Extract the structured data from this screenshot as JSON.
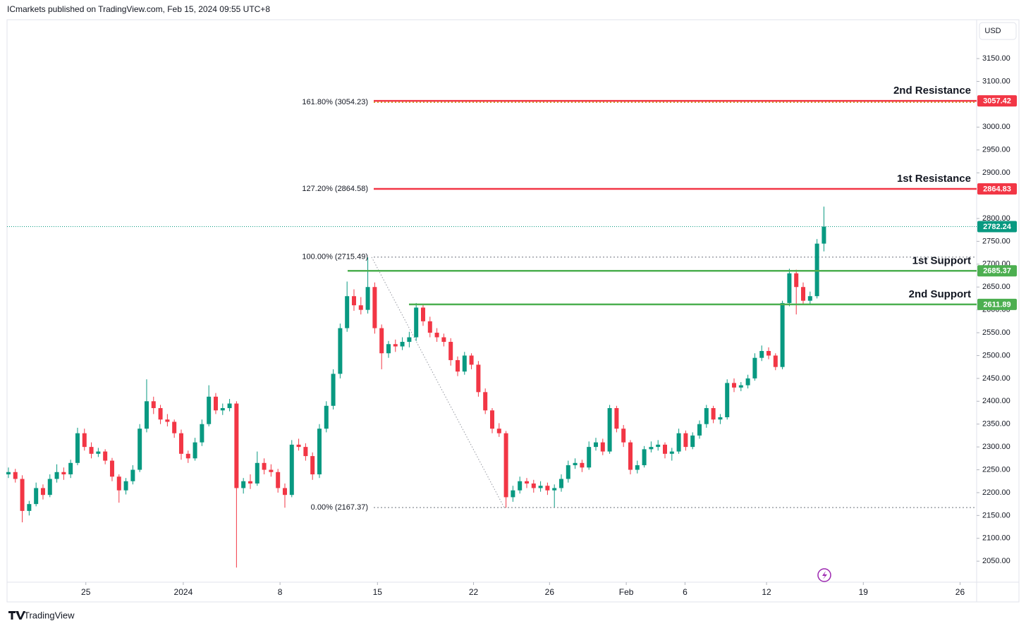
{
  "header": {
    "publisher": "ICmarkets published on TradingView.com, Feb 15, 2024 09:55 UTC+8",
    "currency": "USD"
  },
  "footer": {
    "brand": "TradingView"
  },
  "chart_data": {
    "type": "candlestick",
    "up_color": "#089981",
    "down_color": "#f23645",
    "xlim": [
      -0.2,
      140.1
    ],
    "xticks": [
      {
        "value": 11.2,
        "label": "25"
      },
      {
        "value": 25.3,
        "label": "2024"
      },
      {
        "value": 39.3,
        "label": "8"
      },
      {
        "value": 53.4,
        "label": "15"
      },
      {
        "value": 67.3,
        "label": "22"
      },
      {
        "value": 78.3,
        "label": "26"
      },
      {
        "value": 89.4,
        "label": "Feb"
      },
      {
        "value": 97.9,
        "label": "6"
      },
      {
        "value": 109.7,
        "label": "12"
      },
      {
        "value": 123.7,
        "label": "19"
      },
      {
        "value": 137.7,
        "label": "26"
      }
    ],
    "ylim": [
      2004,
      3235
    ],
    "yticks": [
      {
        "value": 2050,
        "label": "2050.00"
      },
      {
        "value": 2100,
        "label": "2100.00"
      },
      {
        "value": 2150,
        "label": "2150.00"
      },
      {
        "value": 2200,
        "label": "2200.00"
      },
      {
        "value": 2250,
        "label": "2250.00"
      },
      {
        "value": 2300,
        "label": "2300.00"
      },
      {
        "value": 2350,
        "label": "2350.00"
      },
      {
        "value": 2400,
        "label": "2400.00"
      },
      {
        "value": 2450,
        "label": "2450.00"
      },
      {
        "value": 2500,
        "label": "2500.00"
      },
      {
        "value": 2550,
        "label": "2550.00"
      },
      {
        "value": 2600,
        "label": "2600.00"
      },
      {
        "value": 2650,
        "label": "2650.00"
      },
      {
        "value": 2700,
        "label": "2700.00"
      },
      {
        "value": 2750,
        "label": "2750.00"
      },
      {
        "value": 2800,
        "label": "2800.00"
      },
      {
        "value": 2900,
        "label": "2900.00"
      },
      {
        "value": 2950,
        "label": "2950.00"
      },
      {
        "value": 3000,
        "label": "3000.00"
      },
      {
        "value": 3100,
        "label": "3100.00"
      },
      {
        "value": 3150,
        "label": "3150.00"
      }
    ],
    "candles": [
      [
        2240,
        2255,
        2232,
        2245
      ],
      [
        2245,
        2252,
        2222,
        2230
      ],
      [
        2230,
        2238,
        2135,
        2160
      ],
      [
        2160,
        2182,
        2150,
        2175
      ],
      [
        2175,
        2222,
        2170,
        2210
      ],
      [
        2210,
        2218,
        2185,
        2195
      ],
      [
        2195,
        2240,
        2190,
        2230
      ],
      [
        2230,
        2262,
        2222,
        2245
      ],
      [
        2245,
        2255,
        2228,
        2240
      ],
      [
        2240,
        2272,
        2232,
        2265
      ],
      [
        2265,
        2342,
        2260,
        2330
      ],
      [
        2330,
        2340,
        2292,
        2300
      ],
      [
        2300,
        2310,
        2275,
        2285
      ],
      [
        2285,
        2298,
        2278,
        2290
      ],
      [
        2290,
        2295,
        2262,
        2270
      ],
      [
        2270,
        2276,
        2225,
        2235
      ],
      [
        2235,
        2240,
        2178,
        2205
      ],
      [
        2205,
        2232,
        2196,
        2225
      ],
      [
        2225,
        2260,
        2218,
        2250
      ],
      [
        2250,
        2350,
        2245,
        2340
      ],
      [
        2340,
        2448,
        2332,
        2400
      ],
      [
        2400,
        2410,
        2372,
        2385
      ],
      [
        2385,
        2392,
        2350,
        2360
      ],
      [
        2360,
        2372,
        2345,
        2355
      ],
      [
        2355,
        2360,
        2320,
        2330
      ],
      [
        2330,
        2338,
        2272,
        2285
      ],
      [
        2285,
        2292,
        2265,
        2275
      ],
      [
        2275,
        2320,
        2270,
        2310
      ],
      [
        2310,
        2360,
        2302,
        2350
      ],
      [
        2350,
        2435,
        2345,
        2410
      ],
      [
        2410,
        2418,
        2372,
        2380
      ],
      [
        2380,
        2395,
        2370,
        2385
      ],
      [
        2385,
        2405,
        2378,
        2395
      ],
      [
        2395,
        2400,
        2036,
        2210
      ],
      [
        2210,
        2232,
        2198,
        2225
      ],
      [
        2225,
        2240,
        2208,
        2220
      ],
      [
        2220,
        2290,
        2215,
        2265
      ],
      [
        2265,
        2275,
        2240,
        2250
      ],
      [
        2250,
        2262,
        2235,
        2245
      ],
      [
        2245,
        2252,
        2200,
        2210
      ],
      [
        2210,
        2220,
        2167,
        2195
      ],
      [
        2195,
        2315,
        2190,
        2305
      ],
      [
        2305,
        2318,
        2292,
        2300
      ],
      [
        2300,
        2308,
        2270,
        2280
      ],
      [
        2280,
        2288,
        2228,
        2240
      ],
      [
        2240,
        2350,
        2232,
        2340
      ],
      [
        2340,
        2400,
        2332,
        2390
      ],
      [
        2390,
        2470,
        2382,
        2460
      ],
      [
        2460,
        2570,
        2450,
        2560
      ],
      [
        2560,
        2662,
        2552,
        2630
      ],
      [
        2630,
        2645,
        2598,
        2610
      ],
      [
        2610,
        2628,
        2590,
        2600
      ],
      [
        2600,
        2715,
        2592,
        2650
      ],
      [
        2650,
        2660,
        2548,
        2560
      ],
      [
        2560,
        2568,
        2470,
        2505
      ],
      [
        2505,
        2532,
        2495,
        2525
      ],
      [
        2525,
        2535,
        2508,
        2520
      ],
      [
        2520,
        2540,
        2512,
        2530
      ],
      [
        2530,
        2552,
        2518,
        2540
      ],
      [
        2540,
        2615,
        2532,
        2605
      ],
      [
        2605,
        2612,
        2565,
        2575
      ],
      [
        2575,
        2585,
        2540,
        2550
      ],
      [
        2550,
        2560,
        2530,
        2540
      ],
      [
        2540,
        2548,
        2520,
        2530
      ],
      [
        2530,
        2538,
        2478,
        2490
      ],
      [
        2490,
        2498,
        2455,
        2465
      ],
      [
        2465,
        2508,
        2458,
        2500
      ],
      [
        2500,
        2505,
        2470,
        2480
      ],
      [
        2480,
        2488,
        2410,
        2420
      ],
      [
        2420,
        2428,
        2372,
        2380
      ],
      [
        2380,
        2385,
        2330,
        2340
      ],
      [
        2340,
        2352,
        2322,
        2330
      ],
      [
        2330,
        2335,
        2167,
        2190
      ],
      [
        2190,
        2215,
        2180,
        2205
      ],
      [
        2205,
        2235,
        2198,
        2225
      ],
      [
        2225,
        2232,
        2210,
        2220
      ],
      [
        2220,
        2228,
        2200,
        2210
      ],
      [
        2210,
        2225,
        2202,
        2215
      ],
      [
        2215,
        2222,
        2195,
        2205
      ],
      [
        2205,
        2218,
        2168,
        2210
      ],
      [
        2210,
        2240,
        2202,
        2230
      ],
      [
        2230,
        2270,
        2222,
        2260
      ],
      [
        2260,
        2275,
        2252,
        2265
      ],
      [
        2265,
        2272,
        2245,
        2255
      ],
      [
        2255,
        2312,
        2250,
        2300
      ],
      [
        2300,
        2320,
        2292,
        2310
      ],
      [
        2310,
        2318,
        2282,
        2290
      ],
      [
        2290,
        2392,
        2285,
        2385
      ],
      [
        2385,
        2390,
        2332,
        2340
      ],
      [
        2340,
        2348,
        2300,
        2310
      ],
      [
        2310,
        2315,
        2240,
        2250
      ],
      [
        2250,
        2270,
        2242,
        2260
      ],
      [
        2260,
        2302,
        2255,
        2295
      ],
      [
        2295,
        2312,
        2288,
        2300
      ],
      [
        2300,
        2315,
        2292,
        2305
      ],
      [
        2305,
        2310,
        2275,
        2285
      ],
      [
        2285,
        2298,
        2270,
        2290
      ],
      [
        2290,
        2340,
        2285,
        2330
      ],
      [
        2330,
        2336,
        2292,
        2300
      ],
      [
        2300,
        2332,
        2295,
        2325
      ],
      [
        2325,
        2358,
        2318,
        2350
      ],
      [
        2350,
        2392,
        2342,
        2385
      ],
      [
        2385,
        2390,
        2352,
        2360
      ],
      [
        2360,
        2372,
        2350,
        2365
      ],
      [
        2365,
        2448,
        2360,
        2440
      ],
      [
        2440,
        2450,
        2420,
        2430
      ],
      [
        2430,
        2442,
        2422,
        2435
      ],
      [
        2435,
        2458,
        2428,
        2450
      ],
      [
        2450,
        2505,
        2445,
        2495
      ],
      [
        2495,
        2522,
        2488,
        2510
      ],
      [
        2510,
        2518,
        2492,
        2500
      ],
      [
        2500,
        2505,
        2468,
        2475
      ],
      [
        2475,
        2620,
        2470,
        2615
      ],
      [
        2615,
        2690,
        2608,
        2680
      ],
      [
        2680,
        2688,
        2590,
        2650
      ],
      [
        2650,
        2660,
        2612,
        2620
      ],
      [
        2620,
        2640,
        2612,
        2630
      ],
      [
        2630,
        2755,
        2625,
        2745
      ],
      [
        2745,
        2826,
        2728,
        2782.24
      ]
    ],
    "current_price": {
      "value": 2782.24,
      "color": "#089981"
    },
    "levels": [
      {
        "name": "2nd Resistance",
        "value": 3057.42,
        "color": "#f23645"
      },
      {
        "name": "1st Resistance",
        "value": 2864.83,
        "color": "#f23645"
      },
      {
        "name": "1st Support",
        "value": 2685.37,
        "color": "#4caf50"
      },
      {
        "name": "2nd Support",
        "value": 2611.89,
        "color": "#4caf50"
      }
    ],
    "fib_levels": {
      "values": [
        3054.23,
        2864.58,
        2715.49,
        2167.37
      ],
      "value_labels": [
        "161.80% (3054.23)",
        "127.20% (2864.58)",
        "100.00% (2715.49)",
        "0.00% (2167.37)"
      ],
      "colors": [
        "#c49a0a",
        "#3179f5",
        "#8a8d96",
        "#8a8d96"
      ]
    }
  }
}
